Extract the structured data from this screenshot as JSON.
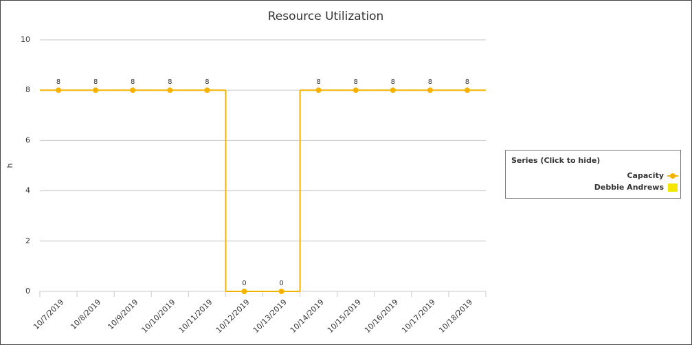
{
  "chart_data": {
    "type": "step-line",
    "title": "Resource Utilization",
    "y_label": "h",
    "categories": [
      "10/7/2019",
      "10/8/2019",
      "10/9/2019",
      "10/10/2019",
      "10/11/2019",
      "10/12/2019",
      "10/13/2019",
      "10/14/2019",
      "10/15/2019",
      "10/16/2019",
      "10/17/2019",
      "10/18/2019"
    ],
    "series": [
      {
        "name": "Capacity",
        "color": "#f5b300",
        "values": [
          8,
          8,
          8,
          8,
          8,
          0,
          0,
          8,
          8,
          8,
          8,
          8
        ]
      },
      {
        "name": "Debbie Andrews",
        "color": "#f5e600",
        "values": [
          null,
          null,
          null,
          null,
          null,
          null,
          null,
          null,
          null,
          null,
          null,
          null
        ]
      }
    ],
    "ylim": [
      0,
      10
    ],
    "yticks": [
      0,
      2,
      4,
      6,
      8,
      10
    ],
    "grid": true,
    "legend": {
      "title": "Series (Click to hide)",
      "position": "right"
    }
  }
}
